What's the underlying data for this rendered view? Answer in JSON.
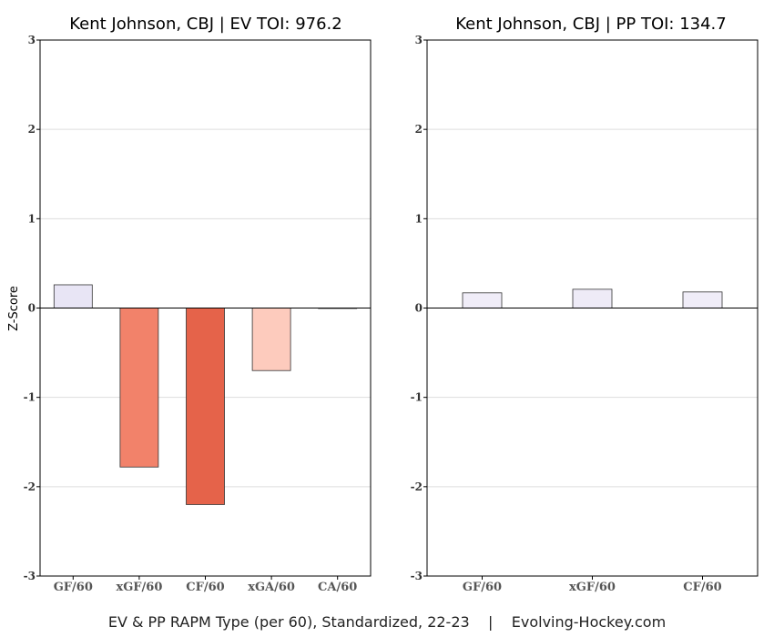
{
  "caption": "EV & PP RAPM Type (per 60), Standardized, 22-23    |    Evolving-Hockey.com",
  "chart_data": [
    {
      "type": "bar",
      "title": "Kent Johnson, CBJ  |  EV TOI: 976.2",
      "ylabel": "Z-Score",
      "xlabel": "",
      "ylim": [
        -3,
        3
      ],
      "yticks": [
        3,
        2,
        1,
        0,
        -1,
        -2,
        -3
      ],
      "grid": true,
      "categories": [
        "GF/60",
        "xGF/60",
        "CF/60",
        "xGA/60",
        "CA/60"
      ],
      "values": [
        0.26,
        -1.78,
        -2.2,
        -0.7,
        0.0
      ],
      "colors": [
        "#e8e5f5",
        "#f2826a",
        "#e5634a",
        "#fdcbbd",
        "#ffffff"
      ]
    },
    {
      "type": "bar",
      "title": "Kent Johnson, CBJ  |  PP TOI: 134.7",
      "ylabel": "",
      "xlabel": "",
      "ylim": [
        -3,
        3
      ],
      "yticks": [
        3,
        2,
        1,
        0,
        -1,
        -2,
        -3
      ],
      "grid": true,
      "categories": [
        "GF/60",
        "xGF/60",
        "CF/60"
      ],
      "values": [
        0.17,
        0.21,
        0.18
      ],
      "colors": [
        "#f0edf8",
        "#eeebf7",
        "#f0edf8"
      ]
    }
  ]
}
